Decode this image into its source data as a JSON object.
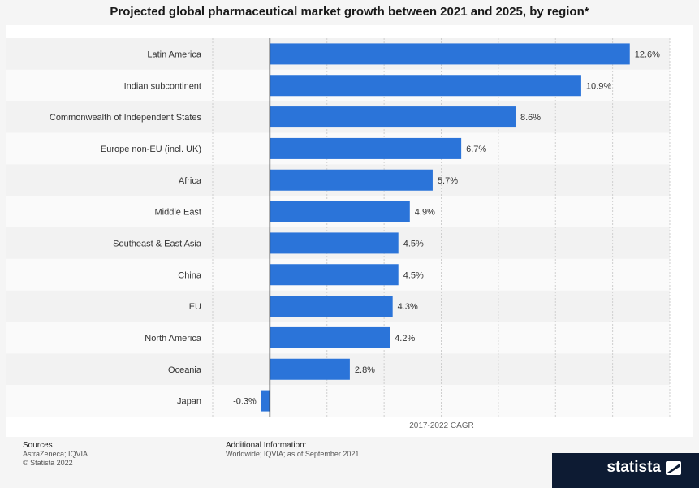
{
  "title": "Projected global pharmaceutical market growth between 2021 and 2025, by region*",
  "chart_data": {
    "type": "bar",
    "orientation": "horizontal",
    "categories": [
      "Latin America",
      "Indian subcontinent",
      "Commonwealth of Independent States",
      "Europe non-EU (incl. UK)",
      "Africa",
      "Middle East",
      "Southeast & East Asia",
      "China",
      "EU",
      "North America",
      "Oceania",
      "Japan"
    ],
    "values": [
      12.6,
      10.9,
      8.6,
      6.7,
      5.7,
      4.9,
      4.5,
      4.5,
      4.3,
      4.2,
      2.8,
      -0.3
    ],
    "value_labels": [
      "12.6%",
      "10.9%",
      "8.6%",
      "6.7%",
      "5.7%",
      "4.9%",
      "4.5%",
      "4.5%",
      "4.3%",
      "4.2%",
      "2.8%",
      "-0.3%"
    ],
    "xlabel": "2017-2022 CAGR",
    "xlim": [
      -2,
      14
    ],
    "grid": true,
    "bar_color": "#2b74d9"
  },
  "footer": {
    "sources_heading": "Sources",
    "sources_line1": "AstraZeneca; IQVIA",
    "sources_line2": "© Statista 2022",
    "additional_heading": "Additional Information:",
    "additional_line1": "Worldwide; IQVIA; as of September 2021"
  },
  "brand": {
    "name": "statista",
    "icon": "statista-logo-icon"
  }
}
